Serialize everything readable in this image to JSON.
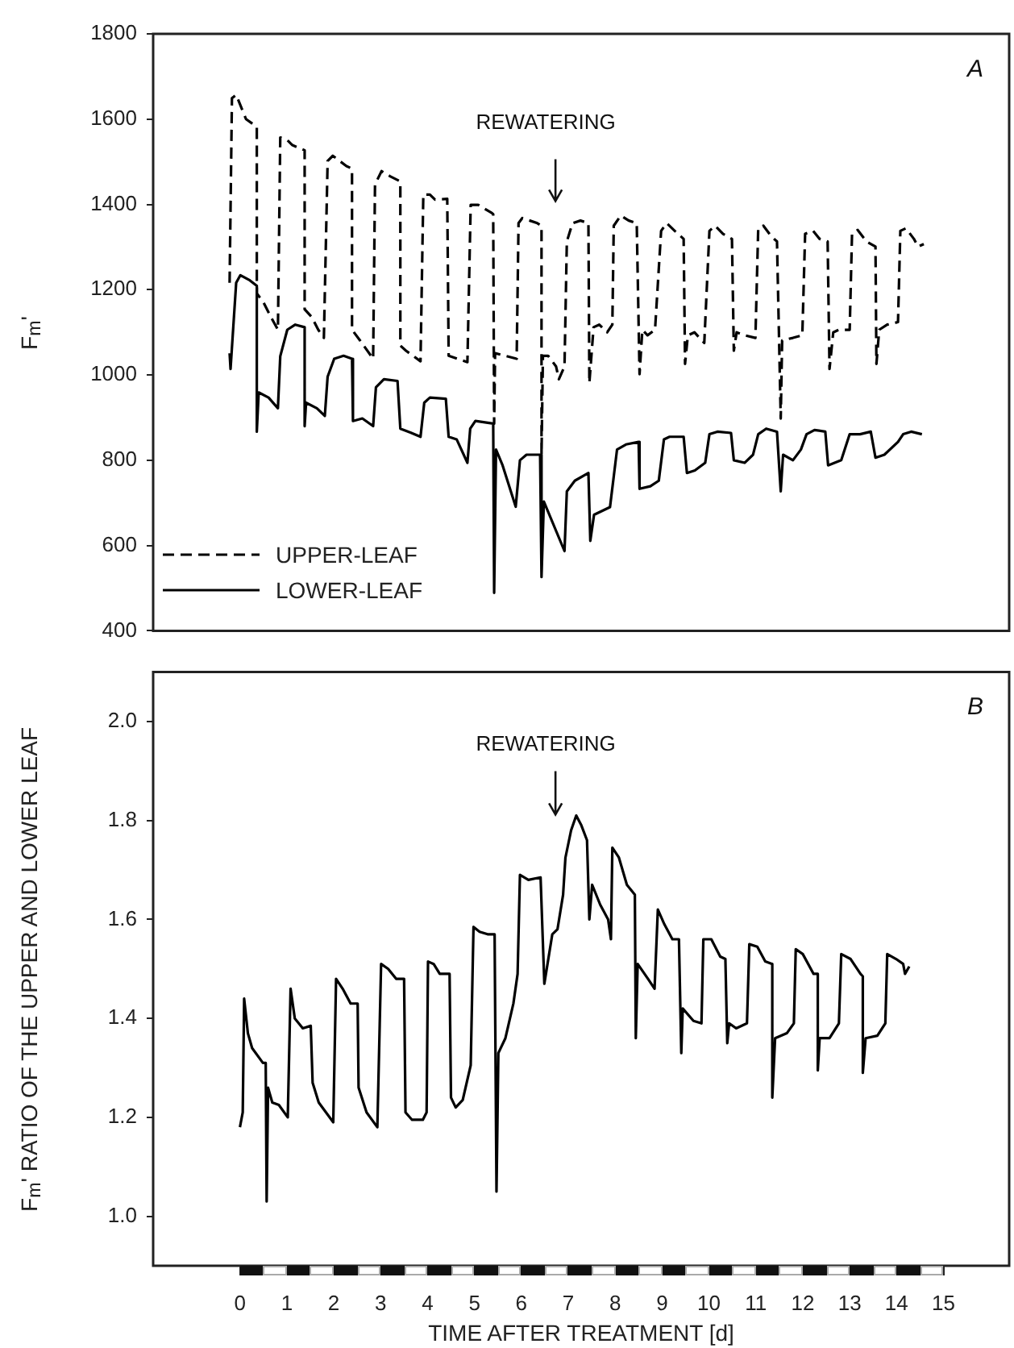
{
  "chart_data": [
    {
      "type": "line",
      "ylabel": "F$_{m}$'",
      "xlim": [
        -1.85,
        16.4
      ],
      "ylim": [
        400,
        1800
      ],
      "yticks": [
        400,
        600,
        800,
        1000,
        1200,
        1400,
        1600,
        1800
      ],
      "tick_labels": "y",
      "legend": "bottom left",
      "marker": "none",
      "annotations": [
        "A",
        "REWATERING"
      ],
      "series": [
        {
          "name": "UPPER-LEAF",
          "color": "#000000",
          "line_style": "dashed",
          "x": [
            -0.22,
            -0.17,
            -0.08,
            0.13,
            0.36,
            0.36,
            0.49,
            0.66,
            0.81,
            0.86,
            1.01,
            1.12,
            1.38,
            1.38,
            1.53,
            1.67,
            1.79,
            1.87,
            1.98,
            2.27,
            2.39,
            2.39,
            2.56,
            2.84,
            2.88,
            3.02,
            3.2,
            3.42,
            3.42,
            3.54,
            3.85,
            3.91,
            4.05,
            4.16,
            4.42,
            4.45,
            4.85,
            4.92,
            5.08,
            5.37,
            5.4,
            5.42,
            5.44,
            5.65,
            5.9,
            5.94,
            6.02,
            6.34,
            6.43,
            6.43,
            6.46,
            6.57,
            6.74,
            6.8,
            6.92,
            6.97,
            7.09,
            7.26,
            7.43,
            7.45,
            7.54,
            7.66,
            7.83,
            7.94,
            7.97,
            8.12,
            8.29,
            8.46,
            8.52,
            8.58,
            8.69,
            8.85,
            8.98,
            9.1,
            9.27,
            9.46,
            9.49,
            9.55,
            9.69,
            9.9,
            10.01,
            10.13,
            10.3,
            10.49,
            10.53,
            10.59,
            10.76,
            10.99,
            11.05,
            11.16,
            11.33,
            11.45,
            11.53,
            11.56,
            11.79,
            11.99,
            12.05,
            12.22,
            12.36,
            12.53,
            12.57,
            12.65,
            12.77,
            13.0,
            13.05,
            13.17,
            13.36,
            13.55,
            13.57,
            13.63,
            13.8,
            14.03,
            14.08,
            14.2,
            14.37,
            14.46,
            14.58
          ],
          "values": [
            1216,
            1649,
            1657,
            1600,
            1582,
            1191,
            1173,
            1136,
            1106,
            1557,
            1551,
            1539,
            1527,
            1154,
            1136,
            1106,
            1087,
            1502,
            1514,
            1490,
            1484,
            1106,
            1081,
            1038,
            1447,
            1478,
            1466,
            1454,
            1069,
            1057,
            1032,
            1423,
            1423,
            1411,
            1413,
            1045,
            1030,
            1399,
            1399,
            1380,
            1377,
            886,
            1051,
            1045,
            1038,
            1356,
            1368,
            1356,
            1350,
            813,
            1045,
            1045,
            1020,
            990,
            1020,
            1313,
            1356,
            1362,
            1356,
            981,
            1112,
            1118,
            1100,
            1118,
            1350,
            1374,
            1362,
            1356,
            1002,
            1106,
            1093,
            1106,
            1338,
            1356,
            1338,
            1319,
            1026,
            1093,
            1100,
            1075,
            1338,
            1350,
            1331,
            1319,
            1057,
            1100,
            1093,
            1087,
            1344,
            1350,
            1325,
            1313,
            898,
            1081,
            1087,
            1093,
            1331,
            1338,
            1319,
            1313,
            1014,
            1100,
            1106,
            1106,
            1331,
            1340,
            1313,
            1301,
            1026,
            1106,
            1118,
            1124,
            1338,
            1344,
            1319,
            1301,
            1307
          ]
        },
        {
          "name": "LOWER-LEAF",
          "color": "#000000",
          "line_style": "solid",
          "x": [
            -0.22,
            -0.2,
            -0.08,
            0.01,
            0.21,
            0.36,
            0.36,
            0.4,
            0.61,
            0.81,
            0.86,
            1.01,
            1.18,
            1.38,
            1.38,
            1.41,
            1.64,
            1.81,
            1.87,
            2.01,
            2.21,
            2.39,
            2.41,
            2.61,
            2.84,
            2.9,
            3.07,
            3.36,
            3.42,
            3.59,
            3.85,
            3.93,
            4.05,
            4.39,
            4.45,
            4.62,
            4.85,
            4.91,
            5.02,
            5.4,
            5.42,
            5.46,
            5.6,
            5.88,
            5.97,
            6.11,
            6.4,
            6.43,
            6.48,
            6.92,
            6.97,
            7.14,
            7.43,
            7.47,
            7.55,
            7.89,
            8.04,
            8.23,
            8.5,
            8.52,
            8.75,
            8.93,
            9.04,
            9.16,
            9.46,
            9.53,
            9.7,
            9.92,
            10.01,
            10.18,
            10.47,
            10.53,
            10.76,
            10.94,
            11.05,
            11.22,
            11.45,
            11.53,
            11.58,
            11.79,
            11.96,
            12.08,
            12.25,
            12.48,
            12.54,
            12.82,
            13.0,
            13.22,
            13.45,
            13.55,
            13.74,
            14.03,
            14.14,
            14.31,
            14.54
          ],
          "values": [
            1051,
            1014,
            1216,
            1234,
            1222,
            1209,
            867,
            959,
            947,
            922,
            1044,
            1106,
            1118,
            1112,
            880,
            935,
            922,
            904,
            996,
            1038,
            1045,
            1038,
            892,
            898,
            880,
            971,
            990,
            986,
            874,
            867,
            855,
            935,
            947,
            944,
            855,
            849,
            794,
            874,
            892,
            886,
            489,
            825,
            788,
            691,
            800,
            813,
            813,
            526,
            703,
            587,
            727,
            752,
            770,
            611,
            672,
            690,
            825,
            837,
            843,
            733,
            739,
            752,
            849,
            855,
            855,
            770,
            776,
            794,
            861,
            867,
            864,
            800,
            794,
            813,
            861,
            874,
            867,
            727,
            813,
            800,
            825,
            861,
            871,
            867,
            788,
            800,
            861,
            861,
            867,
            806,
            813,
            843,
            861,
            867,
            861
          ]
        }
      ]
    },
    {
      "type": "line",
      "xlabel": "TIME AFTER TREATMENT [d]",
      "ylabel": "F$_{m}$' RATIO OF THE UPPER AND LOWER LEAF",
      "xlim": [
        -1.85,
        16.4
      ],
      "xticks": [
        0,
        1,
        2,
        3,
        4,
        5,
        6,
        7,
        8,
        9,
        10,
        11,
        12,
        13,
        14,
        15
      ],
      "ylim": [
        0.9,
        2.1
      ],
      "yticks": [
        {
          "value": 1,
          "label": "1.0"
        },
        1.2,
        1.4,
        1.6,
        1.8,
        {
          "value": 2,
          "label": "2.0"
        }
      ],
      "marker": "none",
      "annotations": [
        "B",
        "REWATERING"
      ],
      "series": [
        {
          "color": "#000000",
          "x": [
            0,
            0.06,
            0.09,
            0.17,
            0.26,
            0.49,
            0.55,
            0.57,
            0.6,
            0.69,
            0.83,
            1.02,
            1.08,
            1.17,
            1.34,
            1.51,
            1.55,
            1.68,
            1.99,
            2.05,
            2.19,
            2.36,
            2.51,
            2.53,
            2.7,
            2.93,
            3.01,
            3.16,
            3.33,
            3.5,
            3.53,
            3.67,
            3.9,
            3.98,
            4.01,
            4.13,
            4.26,
            4.47,
            4.5,
            4.6,
            4.75,
            4.92,
            4.98,
            5.11,
            5.28,
            5.43,
            5.47,
            5.51,
            5.66,
            5.83,
            5.92,
            5.97,
            6.15,
            6.41,
            6.49,
            6.66,
            6.77,
            6.89,
            6.94,
            7.06,
            7.17,
            7.28,
            7.4,
            7.45,
            7.51,
            7.68,
            7.85,
            7.91,
            7.94,
            8.08,
            8.25,
            8.42,
            8.44,
            8.48,
            8.7,
            8.84,
            8.91,
            9.05,
            9.22,
            9.36,
            9.41,
            9.44,
            9.67,
            9.84,
            9.88,
            10.05,
            10.24,
            10.35,
            10.39,
            10.43,
            10.58,
            10.81,
            10.86,
            11.03,
            11.2,
            11.35,
            11.35,
            11.41,
            11.66,
            11.81,
            11.85,
            12.0,
            12.23,
            12.32,
            12.32,
            12.36,
            12.57,
            12.77,
            12.82,
            13.02,
            13.23,
            13.28,
            13.28,
            13.34,
            13.59,
            13.76,
            13.8,
            13.99,
            14.14,
            14.18,
            14.27
          ],
          "values": [
            1.18,
            1.21,
            1.44,
            1.37,
            1.34,
            1.31,
            1.31,
            1.03,
            1.26,
            1.23,
            1.225,
            1.2,
            1.46,
            1.4,
            1.38,
            1.385,
            1.27,
            1.23,
            1.19,
            1.48,
            1.46,
            1.43,
            1.43,
            1.26,
            1.21,
            1.18,
            1.51,
            1.5,
            1.48,
            1.48,
            1.21,
            1.195,
            1.195,
            1.21,
            1.515,
            1.51,
            1.49,
            1.49,
            1.24,
            1.22,
            1.235,
            1.305,
            1.585,
            1.575,
            1.57,
            1.57,
            1.05,
            1.33,
            1.36,
            1.43,
            1.49,
            1.69,
            1.68,
            1.685,
            1.47,
            1.57,
            1.58,
            1.65,
            1.725,
            1.78,
            1.81,
            1.79,
            1.76,
            1.6,
            1.67,
            1.63,
            1.6,
            1.56,
            1.745,
            1.725,
            1.67,
            1.65,
            1.36,
            1.51,
            1.48,
            1.46,
            1.62,
            1.59,
            1.56,
            1.56,
            1.33,
            1.42,
            1.395,
            1.39,
            1.56,
            1.56,
            1.525,
            1.52,
            1.35,
            1.39,
            1.38,
            1.39,
            1.55,
            1.545,
            1.515,
            1.51,
            1.24,
            1.36,
            1.37,
            1.39,
            1.54,
            1.53,
            1.49,
            1.49,
            1.295,
            1.36,
            1.36,
            1.39,
            1.53,
            1.52,
            1.49,
            1.485,
            1.29,
            1.36,
            1.365,
            1.39,
            1.53,
            1.52,
            1.51,
            1.49,
            1.505
          ]
        }
      ]
    }
  ]
}
